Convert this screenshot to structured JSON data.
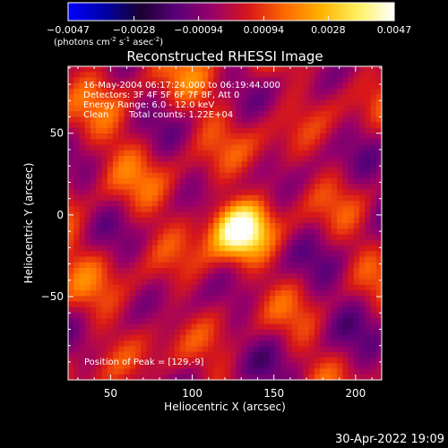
{
  "colorbar": {
    "tick_labels": [
      "-0.0047",
      "-0.0028",
      "-0.00094",
      "0.00094",
      "0.0028",
      "0.0047"
    ],
    "range": [
      -0.0047,
      0.0047
    ],
    "units_main": "(photons cm",
    "units_exp1": "-2",
    "units_mid": " s",
    "units_exp2": "-1",
    "units_tail": " asec",
    "units_exp3": "-2",
    "units_close": ")",
    "colors": [
      "#0000ff",
      "#0000a8",
      "#1a0030",
      "#5a007a",
      "#9a0068",
      "#d81818",
      "#ff6a00",
      "#ffb400",
      "#fff060",
      "#ffffff"
    ]
  },
  "chart_data": {
    "type": "heatmap",
    "title": "Reconstructed RHESSI Image",
    "xlabel": "Heliocentric X (arcsec)",
    "ylabel": "Heliocentric Y (arcsec)",
    "xlim": [
      24,
      216
    ],
    "ylim": [
      -101,
      91
    ],
    "x_ticks": [
      50,
      100,
      150,
      200
    ],
    "y_ticks": [
      -50,
      0,
      50
    ],
    "x_tick_labels": [
      "50",
      "100",
      "150",
      "200"
    ],
    "y_tick_labels": [
      "−50",
      "0",
      "50"
    ],
    "annotations": {
      "time_range": "16-May-2004 06:17:24.000 to 06:19:44.000",
      "detectors": "Detectors: 3F 4F 5F 6F 7F 8F, Att 0",
      "energy": "Energy Range: 6.0 - 12.0 keV",
      "clean_label": "Clean",
      "total_counts": "Total counts: 1.22E+04",
      "peak": "Position of Peak = [129,-9]"
    },
    "peak": [
      129,
      -9
    ]
  },
  "timestamp": "30-Apr-2022 19:09"
}
